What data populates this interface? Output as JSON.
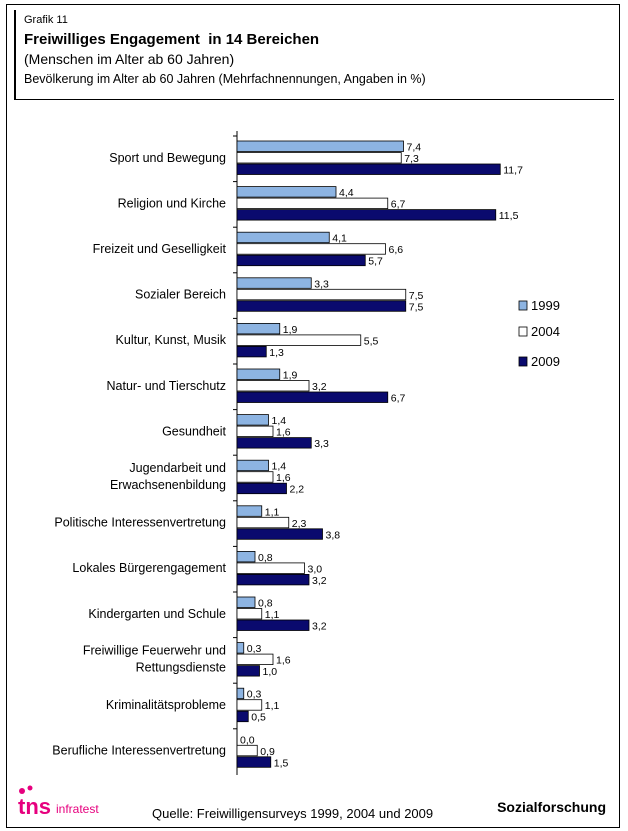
{
  "header": {
    "grafik_label": "Grafik 11",
    "title": "Freiwilliges Engagement  in 14 Bereichen",
    "subtitle": "(Menschen im Alter ab 60 Jahren)",
    "caption": "Bevölkerung im Alter ab 60 Jahren (Mehrfachnennungen, Angaben in %)"
  },
  "footer": {
    "source": "Quelle: Freiwilligensurveys 1999, 2004 und 2009",
    "brand": "Sozialforschung",
    "logo_main": "tns",
    "logo_sub": "infratest"
  },
  "colors": {
    "1999": "#8db4e2",
    "2004": "#ffffff",
    "2009": "#0a0a6e"
  },
  "chart_data": {
    "type": "bar",
    "orientation": "horizontal",
    "categories": [
      [
        "Sport und Bewegung"
      ],
      [
        "Religion und Kirche"
      ],
      [
        "Freizeit und Geselligkeit"
      ],
      [
        "Sozialer Bereich"
      ],
      [
        "Kultur, Kunst, Musik"
      ],
      [
        "Natur- und Tierschutz"
      ],
      [
        "Gesundheit"
      ],
      [
        "Jugendarbeit und",
        "Erwachsenenbildung"
      ],
      [
        "Politische Interessenvertretung"
      ],
      [
        "Lokales Bürgerengagement"
      ],
      [
        "Kindergarten und Schule"
      ],
      [
        "Freiwillige Feuerwehr und",
        "Rettungsdienste"
      ],
      [
        "Kriminalitätsprobleme"
      ],
      [
        "Berufliche Interessenvertretung"
      ]
    ],
    "series": [
      {
        "name": "1999",
        "values": [
          7.4,
          4.4,
          4.1,
          3.3,
          1.9,
          1.9,
          1.4,
          1.4,
          1.1,
          0.8,
          0.8,
          0.3,
          0.3,
          0.0
        ],
        "labels": [
          "7,4",
          "4,4",
          "4,1",
          "3,3",
          "1,9",
          "1,9",
          "1,4",
          "1,4",
          "1,1",
          "0,8",
          "0,8",
          "0,3",
          "0,3",
          "0,0"
        ]
      },
      {
        "name": "2004",
        "values": [
          7.3,
          6.7,
          6.6,
          7.5,
          5.5,
          3.2,
          1.6,
          1.6,
          2.3,
          3.0,
          1.1,
          1.6,
          1.1,
          0.9
        ],
        "labels": [
          "7,3",
          "6,7",
          "6,6",
          "7,5",
          "5,5",
          "3,2",
          "1,6",
          "1,6",
          "2,3",
          "3,0",
          "1,1",
          "1,6",
          "1,1",
          "0,9"
        ]
      },
      {
        "name": "2009",
        "values": [
          11.7,
          11.5,
          5.7,
          7.5,
          1.3,
          6.7,
          3.3,
          2.2,
          3.8,
          3.2,
          3.2,
          1.0,
          0.5,
          1.5
        ],
        "labels": [
          "11,7",
          "11,5",
          "5,7",
          "7,5",
          "1,3",
          "6,7",
          "3,3",
          "2,2",
          "3,8",
          "3,2",
          "3,2",
          "1,0",
          "0,5",
          "1,5"
        ]
      }
    ],
    "xlim": [
      0,
      14
    ],
    "grid": false,
    "legend_position": "right"
  }
}
